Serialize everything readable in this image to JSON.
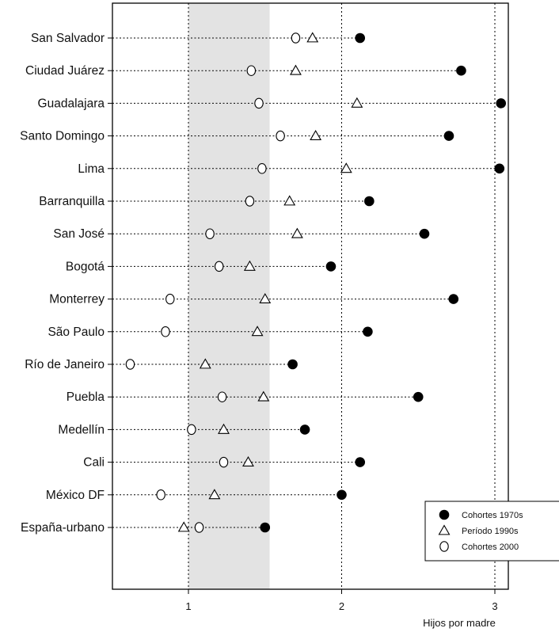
{
  "chart_data": {
    "type": "scatter",
    "title": "",
    "xlabel": "Hijos por madre",
    "ylabel": "",
    "xlim": [
      0.5,
      3.1
    ],
    "xticks": [
      "1",
      "2",
      "3"
    ],
    "shaded_band": [
      1.0,
      1.53
    ],
    "legend_position": "bottom-right",
    "categories": [
      "San Salvador",
      "Ciudad Juárez",
      "Guadalajara",
      "Santo Domingo",
      "Lima",
      "Barranquilla",
      "San José",
      "Bogotá",
      "Monterrey",
      "São Paulo",
      "Río de Janeiro",
      "Puebla",
      "Medellín",
      "Cali",
      "México DF",
      "España-urbano"
    ],
    "series": [
      {
        "name": "Cohortes 1970s",
        "marker": "filled-circle",
        "values": [
          2.12,
          2.78,
          3.04,
          2.7,
          3.03,
          2.18,
          2.54,
          1.93,
          2.73,
          2.17,
          1.68,
          2.5,
          1.76,
          2.12,
          2.0,
          1.5
        ]
      },
      {
        "name": "Período 1990s",
        "marker": "open-triangle",
        "values": [
          1.81,
          1.7,
          2.1,
          1.83,
          2.03,
          1.66,
          1.71,
          1.4,
          1.5,
          1.45,
          1.11,
          1.49,
          1.23,
          1.39,
          1.17,
          0.97
        ]
      },
      {
        "name": "Cohortes 2000",
        "marker": "open-circle",
        "values": [
          1.7,
          1.41,
          1.46,
          1.6,
          1.48,
          1.4,
          1.14,
          1.2,
          0.88,
          0.85,
          0.62,
          1.22,
          1.02,
          1.23,
          0.82,
          1.07
        ]
      }
    ]
  },
  "legend": {
    "entries": [
      "Cohortes 1970s",
      "Período 1990s",
      "Cohortes 2000"
    ]
  }
}
